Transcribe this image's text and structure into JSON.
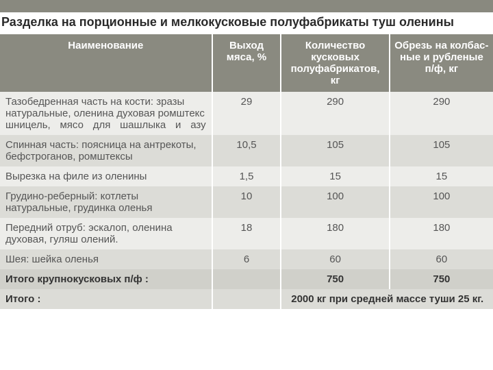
{
  "colors": {
    "topbar": "#89897f",
    "header_bg": "#8a8a80",
    "row_alt1": "#ededea",
    "row_alt2": "#dcdcd7",
    "total_bg": "#d0d0ca",
    "title_color": "#2a2a2a"
  },
  "title": {
    "text": "Разделка на порционные и мелкокусковые полуфабрикаты туш оленины",
    "fontsize": 18
  },
  "table": {
    "header_fontsize": 15,
    "body_fontsize": 15,
    "columns": [
      "Наименование",
      "Выход мяса, %",
      "Количество кусковых полуфабрикатов, кг",
      "Обрезь на колбас-ные и рубленые п/ф, кг"
    ],
    "rows": [
      {
        "name": "Тазобедренная часть на кости: зразы натуральные, оленина духовая ромштекс шницель, мясо для шашлыка и азу",
        "c2": "29",
        "c3": "290",
        "c4": "290",
        "justify": true
      },
      {
        "name": "Спинная часть: поясница на антрекоты, бефстроганов, ромштексы",
        "c2": "10,5",
        "c3": "105",
        "c4": "105"
      },
      {
        "name": "Вырезка на филе из оленины",
        "c2": "1,5",
        "c3": "15",
        "c4": "15"
      },
      {
        "name": "Грудино-реберный: котлеты натуральные, грудинка оленья",
        "c2": "10",
        "c3": "100",
        "c4": "100"
      },
      {
        "name": "Передний отруб: эскалоп, оленина духовая, гуляш олений.",
        "c2": "18",
        "c3": "180",
        "c4": "180"
      },
      {
        "name": "Шея: шейка оленья",
        "c2": "6",
        "c3": "60",
        "c4": "60"
      }
    ],
    "subtotal": {
      "label": "Итого крупнокусковых п/ф :",
      "c2": "",
      "c3": "750",
      "c4": "750"
    },
    "grandtotal": {
      "label": "Итого :",
      "note": "2000 кг  при средней массе туши 25 кг."
    }
  }
}
